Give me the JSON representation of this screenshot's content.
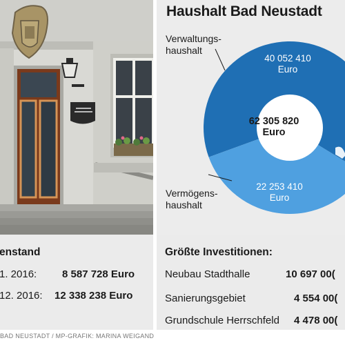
{
  "chart_data": {
    "type": "pie",
    "title": "Haushalt Bad Neustadt",
    "total_value": "62 305 820",
    "total_unit": "Euro",
    "slices": [
      {
        "label_line1": "Verwaltungs-",
        "label_line2": "haushalt",
        "value": 40052410,
        "value_text": "40 052 410",
        "unit": "Euro",
        "color": "#1f6fb4"
      },
      {
        "label_line1": "Vermögens-",
        "label_line2": "haushalt",
        "value": 22253410,
        "value_text": "22 253 410",
        "unit": "Euro",
        "color": "#4fa0e0"
      }
    ]
  },
  "left_panel": {
    "title_fragment": "enstand",
    "rows": [
      {
        "label": "1. 2016:",
        "value": "8 587 728 Euro"
      },
      {
        "label": "12. 2016:",
        "value": "12 338 238 Euro"
      }
    ]
  },
  "right_panel": {
    "title": "Größte Investitionen:",
    "rows": [
      {
        "label": "Neubau Stadthalle",
        "value": "10 697 00("
      },
      {
        "label": "Sanierungsgebiet",
        "value": "4 554 00("
      },
      {
        "label": "Grundschule Herrschfeld",
        "value": "4 478 00("
      }
    ]
  },
  "credit": "BAD NEUSTADT / MP-GRAFIK: MARINA WEIGAND",
  "colors": {
    "dark_blue": "#1f6fb4",
    "light_blue": "#4fa0e0",
    "panel_bg": "#ebebeb",
    "chart_bg": "#ececec",
    "text": "#1a1a1a"
  }
}
